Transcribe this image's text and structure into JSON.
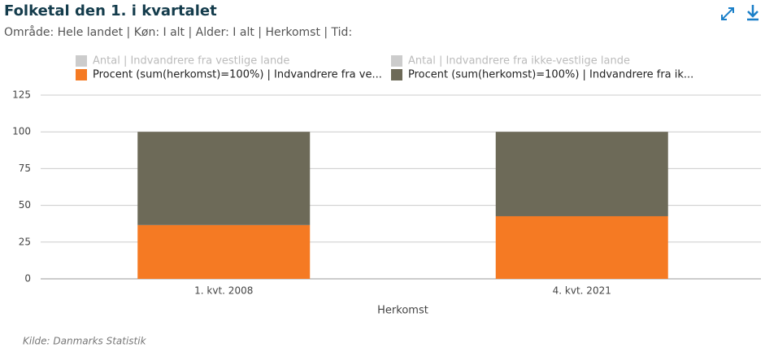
{
  "chart_data": {
    "type": "stacked_bar",
    "title": "Folketal den 1. i kvartalet",
    "subtitle": "Område: Hele landet | Køn: I alt | Alder: I alt | Herkomst | Tid:",
    "categories": [
      "1. kvt. 2008",
      "4. kvt. 2021"
    ],
    "series": [
      {
        "name": "Antal | Indvandrere fra vestlige lande",
        "color": "#cccccc",
        "visible": false,
        "values": [
          null,
          null
        ]
      },
      {
        "name": "Antal | Indvandrere fra ikke-vestlige lande",
        "color": "#cccccc",
        "visible": false,
        "values": [
          null,
          null
        ]
      },
      {
        "name": "Procent (sum(herkomst)=100%) | Indvandrere fra ve...",
        "color": "#f57a23",
        "visible": true,
        "values": [
          36.6,
          42.6
        ]
      },
      {
        "name": "Procent (sum(herkomst)=100%) | Indvandrere fra ik...",
        "color": "#6d6a58",
        "visible": true,
        "values": [
          63.4,
          57.4
        ]
      }
    ],
    "xlabel": "Herkomst",
    "ylim": [
      0,
      125
    ],
    "yticks": [
      0,
      25,
      50,
      75,
      100,
      125
    ],
    "grid": true,
    "source": "Kilde: Danmarks Statistik"
  }
}
